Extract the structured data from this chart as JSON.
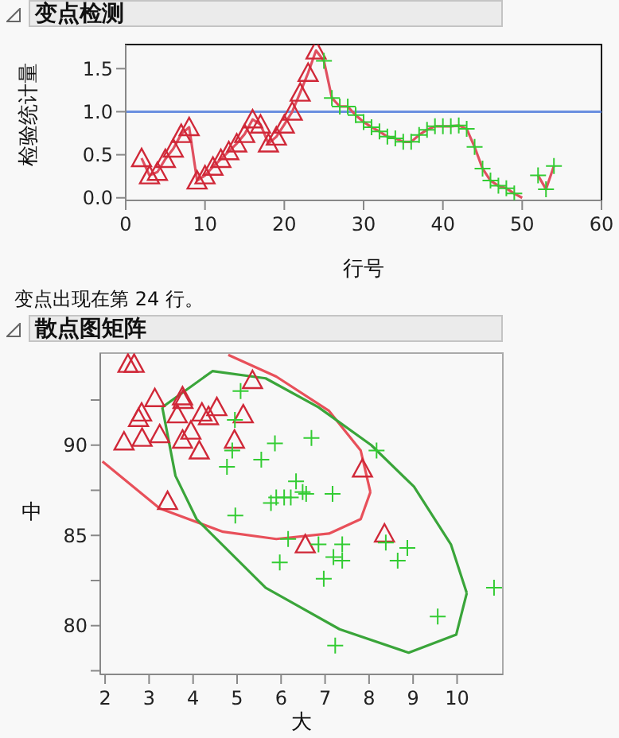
{
  "chart_data": [
    {
      "type": "line",
      "title": "变点检测",
      "xlabel": "行号",
      "ylabel": "检验统计量",
      "annotations": [
        "变点出现在第 24 行。"
      ],
      "xlim": [
        0,
        60
      ],
      "xticks": [
        0,
        10,
        20,
        30,
        40,
        50,
        60
      ],
      "ylim": [
        -0.03,
        1.78
      ],
      "yticks": [
        {
          "value": 0,
          "label": "0.0"
        },
        {
          "value": 0.5,
          "label": "0.5"
        },
        {
          "value": 1,
          "label": "1.0"
        },
        {
          "value": 1.5,
          "label": "1.5"
        }
      ],
      "ref_lines": [
        {
          "axis": "y",
          "value": 1.0,
          "color": "#6a8fe0"
        }
      ],
      "legend": false,
      "series": [
        {
          "color": "#e05060",
          "marker": "none",
          "x": [
            2,
            3,
            4,
            5,
            6,
            7,
            8,
            9,
            10,
            11,
            12,
            13,
            14,
            15,
            16,
            17,
            18,
            19,
            20,
            21,
            22,
            23,
            24,
            25,
            26,
            27,
            28,
            29,
            30,
            31,
            32,
            33,
            34,
            35,
            36,
            37,
            38,
            39,
            40,
            41,
            42,
            43,
            44,
            45,
            46,
            47,
            48,
            49,
            50,
            51,
            52,
            53,
            54
          ],
          "values": [
            0.46,
            0.26,
            0.3,
            0.45,
            0.57,
            0.74,
            0.82,
            0.2,
            0.26,
            0.36,
            0.45,
            0.54,
            0.63,
            0.74,
            0.91,
            0.85,
            0.63,
            0.71,
            0.85,
            1.0,
            1.22,
            1.45,
            1.71,
            1.59,
            1.16,
            1.06,
            1.06,
            0.96,
            0.88,
            0.82,
            0.77,
            0.71,
            0.69,
            0.65,
            0.65,
            0.73,
            0.79,
            0.83,
            0.83,
            0.83,
            0.84,
            0.8,
            0.59,
            0.34,
            0.2,
            0.14,
            0.11,
            0.05,
            0.0,
            null,
            0.26,
            0.1,
            0.37
          ]
        },
        {
          "type": "scatter",
          "color": "#d02838",
          "marker": "triangle",
          "x": [
            2,
            3,
            4,
            5,
            6,
            7,
            8,
            9,
            10,
            11,
            12,
            13,
            14,
            15,
            16,
            17,
            18,
            19,
            20,
            21,
            22,
            23,
            24
          ],
          "values": [
            0.46,
            0.26,
            0.3,
            0.45,
            0.57,
            0.74,
            0.82,
            0.2,
            0.26,
            0.36,
            0.45,
            0.54,
            0.63,
            0.74,
            0.91,
            0.85,
            0.63,
            0.71,
            0.85,
            1.0,
            1.22,
            1.45,
            1.71
          ]
        },
        {
          "type": "scatter",
          "color": "#33cc33",
          "marker": "cross",
          "x": [
            25,
            26,
            27,
            28,
            29,
            30,
            31,
            32,
            33,
            34,
            35,
            36,
            37,
            38,
            39,
            40,
            41,
            42,
            43,
            44,
            45,
            46,
            47,
            48,
            49,
            52,
            53,
            54
          ],
          "values": [
            1.59,
            1.16,
            1.06,
            1.06,
            0.96,
            0.88,
            0.82,
            0.77,
            0.71,
            0.69,
            0.65,
            0.65,
            0.73,
            0.79,
            0.83,
            0.83,
            0.83,
            0.84,
            0.8,
            0.59,
            0.34,
            0.2,
            0.14,
            0.11,
            0.05,
            0.26,
            0.1,
            0.37
          ]
        }
      ]
    },
    {
      "type": "scatter",
      "title": "散点图矩阵",
      "xlabel": "大",
      "ylabel": "中",
      "xlim": [
        1.89,
        11.04
      ],
      "xticks": [
        2,
        3,
        4,
        5,
        6,
        7,
        8,
        9,
        10
      ],
      "ylim": [
        77.3,
        95.1
      ],
      "yticks": [
        {
          "value": 77.5,
          "label": null
        },
        80,
        {
          "value": 82.5,
          "label": null
        },
        85,
        {
          "value": 87.5,
          "label": null
        },
        90,
        {
          "value": 92.5,
          "label": null
        }
      ],
      "legend": false,
      "series": [
        {
          "color": "#d02838",
          "marker": "triangle",
          "x": [
            2.52,
            2.66,
            2.43,
            2.84,
            2.76,
            2.83,
            3.13,
            3.24,
            3.42,
            3.64,
            3.76,
            3.77,
            3.76,
            3.95,
            4.14,
            4.2,
            4.35,
            4.54,
            4.94,
            5.14,
            5.35,
            6.55,
            7.85,
            8.35
          ],
          "values": [
            94.5,
            94.5,
            90.2,
            90.4,
            91.5,
            91.8,
            92.6,
            90.6,
            86.9,
            91.7,
            92.7,
            92.5,
            90.3,
            90.8,
            89.7,
            91.8,
            91.6,
            92.1,
            90.3,
            91.7,
            93.6,
            84.5,
            88.7,
            85.1
          ]
        },
        {
          "color": "#33cc33",
          "marker": "cross",
          "x": [
            5.08,
            4.95,
            4.89,
            4.77,
            5.86,
            5.55,
            6.69,
            4.96,
            6.34,
            6.49,
            6.57,
            5.77,
            5.89,
            6.07,
            6.22,
            7.17,
            8.17,
            6.16,
            6.85,
            5.97,
            7.19,
            7.39,
            7.39,
            6.97,
            8.38,
            8.65,
            8.87,
            7.23,
            9.56,
            10.84
          ],
          "values": [
            93.0,
            91.4,
            89.7,
            88.8,
            90.1,
            89.2,
            90.4,
            86.1,
            88.0,
            87.4,
            87.3,
            86.8,
            87.1,
            87.1,
            87.1,
            87.3,
            89.7,
            84.8,
            84.5,
            83.5,
            83.8,
            84.5,
            83.6,
            82.6,
            84.6,
            83.6,
            84.3,
            78.9,
            80.5,
            82.1
          ]
        },
        {
          "type": "line",
          "color": "#e8505a",
          "marker": "none",
          "x": [
            1.94,
            3.24,
            4.68,
            5.89,
            7.09,
            7.81,
            8.03
          ],
          "values": [
            89.1,
            86.5,
            85.2,
            84.8,
            85.1,
            85.9,
            87.4
          ]
        },
        {
          "type": "line",
          "color": "#e8505a",
          "marker": "none",
          "x": [
            4.8,
            5.89,
            7.09,
            7.81,
            8.03
          ],
          "values": [
            95.0,
            93.8,
            91.9,
            89.7,
            87.4
          ]
        },
        {
          "type": "line",
          "color": "#3aa53a",
          "marker": "none",
          "x": [
            3.3,
            4.44,
            5.65,
            6.85,
            8.05,
            9.02,
            9.86,
            10.22
          ],
          "values": [
            92.1,
            94.1,
            93.7,
            92.1,
            90.0,
            87.7,
            84.5,
            81.8
          ]
        },
        {
          "type": "line",
          "color": "#3aa53a",
          "marker": "none",
          "x": [
            3.3,
            3.6,
            4.08,
            5.65,
            7.33,
            8.9,
            9.98,
            10.22
          ],
          "values": [
            92.1,
            88.3,
            85.9,
            82.1,
            79.8,
            78.5,
            79.5,
            81.8
          ]
        }
      ]
    }
  ]
}
